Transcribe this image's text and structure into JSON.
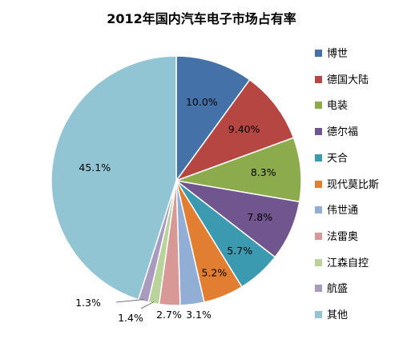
{
  "chart_data": {
    "type": "pie",
    "title": "2012年国内汽车电子市场占有率",
    "legend_position": "right",
    "slices": [
      {
        "name": "博世",
        "value": 10.0,
        "label": "10.0%",
        "color": "#4472A8"
      },
      {
        "name": "德国大陆",
        "value": 9.4,
        "label": "9.40%",
        "color": "#B54642"
      },
      {
        "name": "电装",
        "value": 8.3,
        "label": "8.3%",
        "color": "#8CAB4C"
      },
      {
        "name": "德尔福",
        "value": 7.8,
        "label": "7.8%",
        "color": "#71558E"
      },
      {
        "name": "天合",
        "value": 5.7,
        "label": "5.7%",
        "color": "#3C9AB0"
      },
      {
        "name": "现代莫比斯",
        "value": 5.2,
        "label": "5.2%",
        "color": "#E17E32"
      },
      {
        "name": "伟世通",
        "value": 3.1,
        "label": "3.1%",
        "color": "#93AED4"
      },
      {
        "name": "法雷奥",
        "value": 2.7,
        "label": "2.7%",
        "color": "#D89896"
      },
      {
        "name": "江森自控",
        "value": 1.4,
        "label": "1.4%",
        "color": "#B9D39A"
      },
      {
        "name": "航盛",
        "value": 1.3,
        "label": "1.3%",
        "color": "#A99BBF"
      },
      {
        "name": "其他",
        "value": 45.1,
        "label": "45.1%",
        "color": "#92C5D4"
      }
    ]
  }
}
